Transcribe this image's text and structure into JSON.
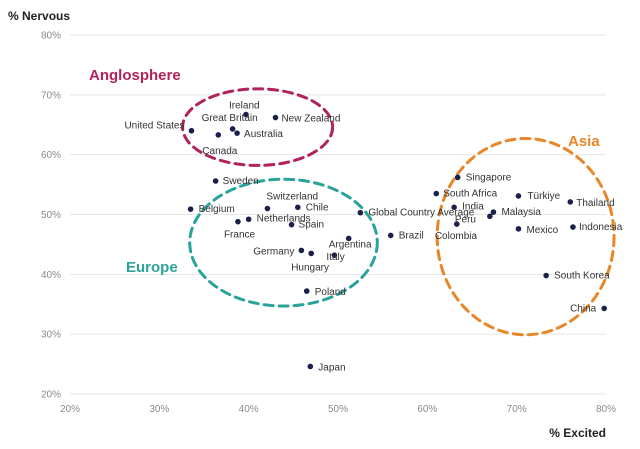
{
  "chart_data": {
    "type": "scatter",
    "xlabel": "% Excited",
    "ylabel": "% Nervous",
    "xlim": [
      20,
      80
    ],
    "ylim": [
      20,
      80
    ],
    "x_ticks": [
      "20%",
      "30%",
      "40%",
      "50%",
      "60%",
      "70%",
      "80%"
    ],
    "y_ticks": [
      "20%",
      "30%",
      "40%",
      "50%",
      "60%",
      "70%",
      "80%"
    ],
    "grid": "horizontal",
    "point_color": "#1a1f4b",
    "points": [
      {
        "label": "Ireland",
        "x": 39.7,
        "y": 66.7
      },
      {
        "label": "New Zealand",
        "x": 43.0,
        "y": 66.2
      },
      {
        "label": "Great Britain",
        "x": 38.2,
        "y": 64.3
      },
      {
        "label": "United States",
        "x": 33.6,
        "y": 64.0
      },
      {
        "label": "Australia",
        "x": 38.7,
        "y": 63.6
      },
      {
        "label": "Canada",
        "x": 36.6,
        "y": 63.3
      },
      {
        "label": "Sweden",
        "x": 36.3,
        "y": 55.6
      },
      {
        "label": "Switzerland",
        "x": 42.1,
        "y": 51.0
      },
      {
        "label": "Belgium",
        "x": 33.5,
        "y": 50.9
      },
      {
        "label": "Chile",
        "x": 45.5,
        "y": 51.2
      },
      {
        "label": "Netherlands",
        "x": 40.0,
        "y": 49.2
      },
      {
        "label": "France",
        "x": 38.8,
        "y": 48.8
      },
      {
        "label": "Spain",
        "x": 44.8,
        "y": 48.3
      },
      {
        "label": "Germany",
        "x": 45.9,
        "y": 44.0
      },
      {
        "label": "Hungary",
        "x": 47.0,
        "y": 43.5
      },
      {
        "label": "Argentina",
        "x": 51.2,
        "y": 46.0
      },
      {
        "label": "Italy",
        "x": 49.6,
        "y": 43.2
      },
      {
        "label": "Poland",
        "x": 46.5,
        "y": 37.2
      },
      {
        "label": "Japan",
        "x": 46.9,
        "y": 24.6
      },
      {
        "label": "Global Country Average",
        "x": 52.5,
        "y": 50.3
      },
      {
        "label": "Brazil",
        "x": 55.9,
        "y": 46.5
      },
      {
        "label": "Singapore",
        "x": 63.4,
        "y": 56.2
      },
      {
        "label": "South Africa",
        "x": 61.0,
        "y": 53.5
      },
      {
        "label": "India",
        "x": 63.0,
        "y": 51.2
      },
      {
        "label": "Malaysia",
        "x": 67.4,
        "y": 50.4
      },
      {
        "label": "Türkiye",
        "x": 70.2,
        "y": 53.1
      },
      {
        "label": "Thailand",
        "x": 76.0,
        "y": 52.1
      },
      {
        "label": "Colombia",
        "x": 63.3,
        "y": 48.4
      },
      {
        "label": "Peru",
        "x": 67.0,
        "y": 49.7
      },
      {
        "label": "Mexico",
        "x": 70.2,
        "y": 47.6
      },
      {
        "label": "Indonesia",
        "x": 76.3,
        "y": 47.9
      },
      {
        "label": "South Korea",
        "x": 73.3,
        "y": 39.8
      },
      {
        "label": "China",
        "x": 79.8,
        "y": 34.3
      }
    ],
    "groups": [
      {
        "label": "Anglosphere",
        "color": "#b0235d",
        "cx": 41.0,
        "cy": 64.6,
        "rx": 8.4,
        "ry": 6.4
      },
      {
        "label": "Europe",
        "color": "#2aa39a",
        "cx": 43.9,
        "cy": 45.3,
        "rx": 10.5,
        "ry": 10.6
      },
      {
        "label": "Asia",
        "color": "#e8872a",
        "cx": 71.0,
        "cy": 46.3,
        "rx": 9.9,
        "ry": 16.4
      }
    ]
  }
}
